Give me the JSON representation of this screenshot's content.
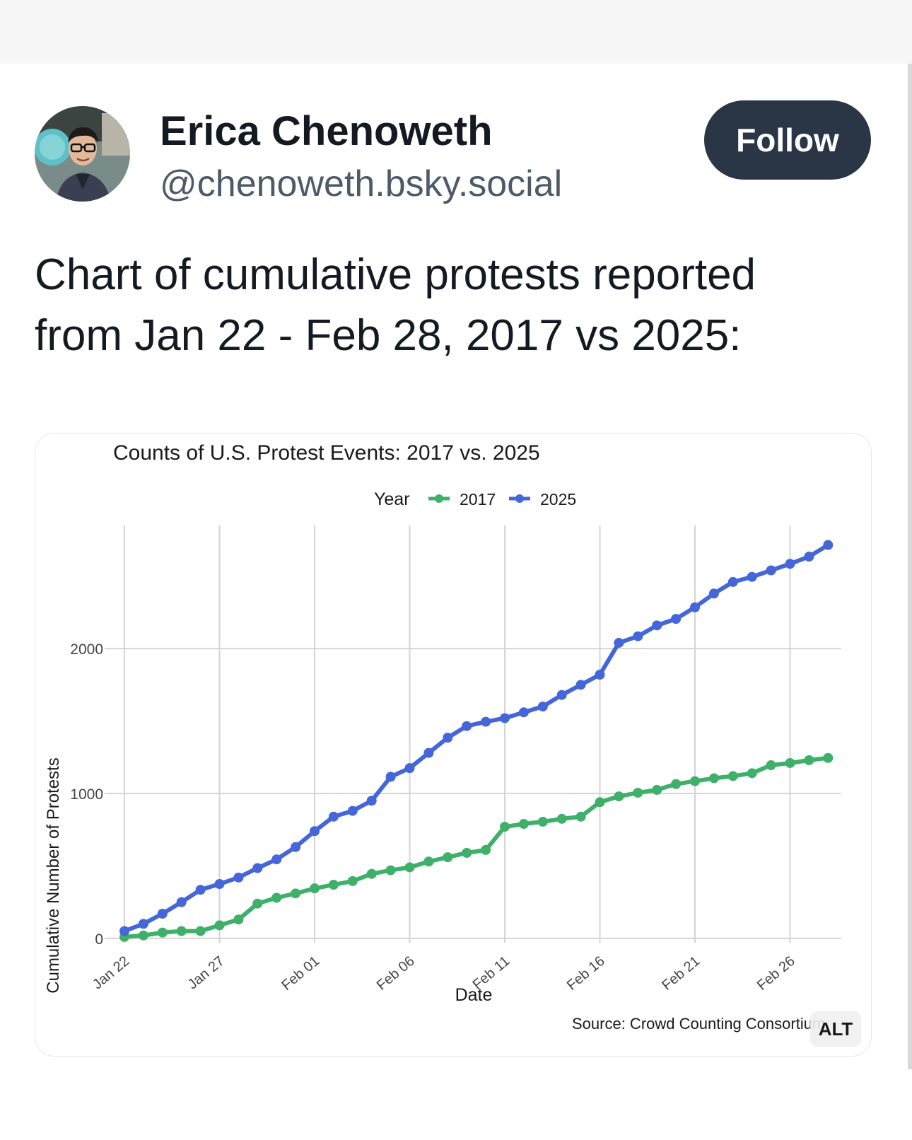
{
  "post": {
    "author": {
      "display_name": "Erica Chenoweth",
      "handle": "@chenoweth.bsky.social",
      "avatar_icon": "person-avatar-icon"
    },
    "follow_label": "Follow",
    "text_lines": [
      "Chart of cumulative protests reported",
      "from Jan 22 - Feb 28, 2017 vs 2025:"
    ],
    "alt_badge": "ALT"
  },
  "colors": {
    "series_2017": "#3fb06a",
    "series_2025": "#4466d8",
    "follow_bg": "#2a3546",
    "gridline": "#d4d4d4"
  },
  "chart_data": {
    "type": "line",
    "title": "Counts of U.S. Protest Events: 2017 vs. 2025",
    "xlabel": "Date",
    "ylabel": "Cumulative Number of Protests",
    "legend_title": "Year",
    "legend_position": "top",
    "caption": "Source: Crowd Counting Consortium",
    "x_ticks": [
      "Jan 22",
      "Jan 27",
      "Feb 01",
      "Feb 06",
      "Feb 11",
      "Feb 16",
      "Feb 21",
      "Feb 26"
    ],
    "y_ticks": [
      "0",
      "1000",
      "2000"
    ],
    "grid": true,
    "x_dates": [
      "Jan 22",
      "Jan 23",
      "Jan 24",
      "Jan 25",
      "Jan 26",
      "Jan 27",
      "Jan 28",
      "Jan 29",
      "Jan 30",
      "Jan 31",
      "Feb 01",
      "Feb 02",
      "Feb 03",
      "Feb 04",
      "Feb 05",
      "Feb 06",
      "Feb 07",
      "Feb 08",
      "Feb 09",
      "Feb 10",
      "Feb 11",
      "Feb 12",
      "Feb 13",
      "Feb 14",
      "Feb 15",
      "Feb 16",
      "Feb 17",
      "Feb 18",
      "Feb 19",
      "Feb 20",
      "Feb 21",
      "Feb 22",
      "Feb 23",
      "Feb 24",
      "Feb 25",
      "Feb 26",
      "Feb 27",
      "Feb 28"
    ],
    "ylim": [
      -30,
      2850
    ],
    "series": [
      {
        "name": "2017",
        "values": [
          10,
          20,
          40,
          50,
          50,
          90,
          130,
          240,
          280,
          310,
          345,
          370,
          395,
          445,
          470,
          490,
          530,
          560,
          590,
          610,
          770,
          790,
          805,
          825,
          840,
          940,
          980,
          1005,
          1025,
          1065,
          1085,
          1105,
          1120,
          1140,
          1195,
          1210,
          1230,
          1245
        ]
      },
      {
        "name": "2025",
        "values": [
          50,
          100,
          170,
          250,
          335,
          375,
          420,
          485,
          545,
          630,
          740,
          840,
          880,
          950,
          1115,
          1175,
          1280,
          1385,
          1465,
          1495,
          1520,
          1560,
          1600,
          1680,
          1750,
          1820,
          2040,
          2085,
          2160,
          2205,
          2285,
          2380,
          2460,
          2495,
          2540,
          2585,
          2635,
          2715
        ]
      }
    ]
  }
}
